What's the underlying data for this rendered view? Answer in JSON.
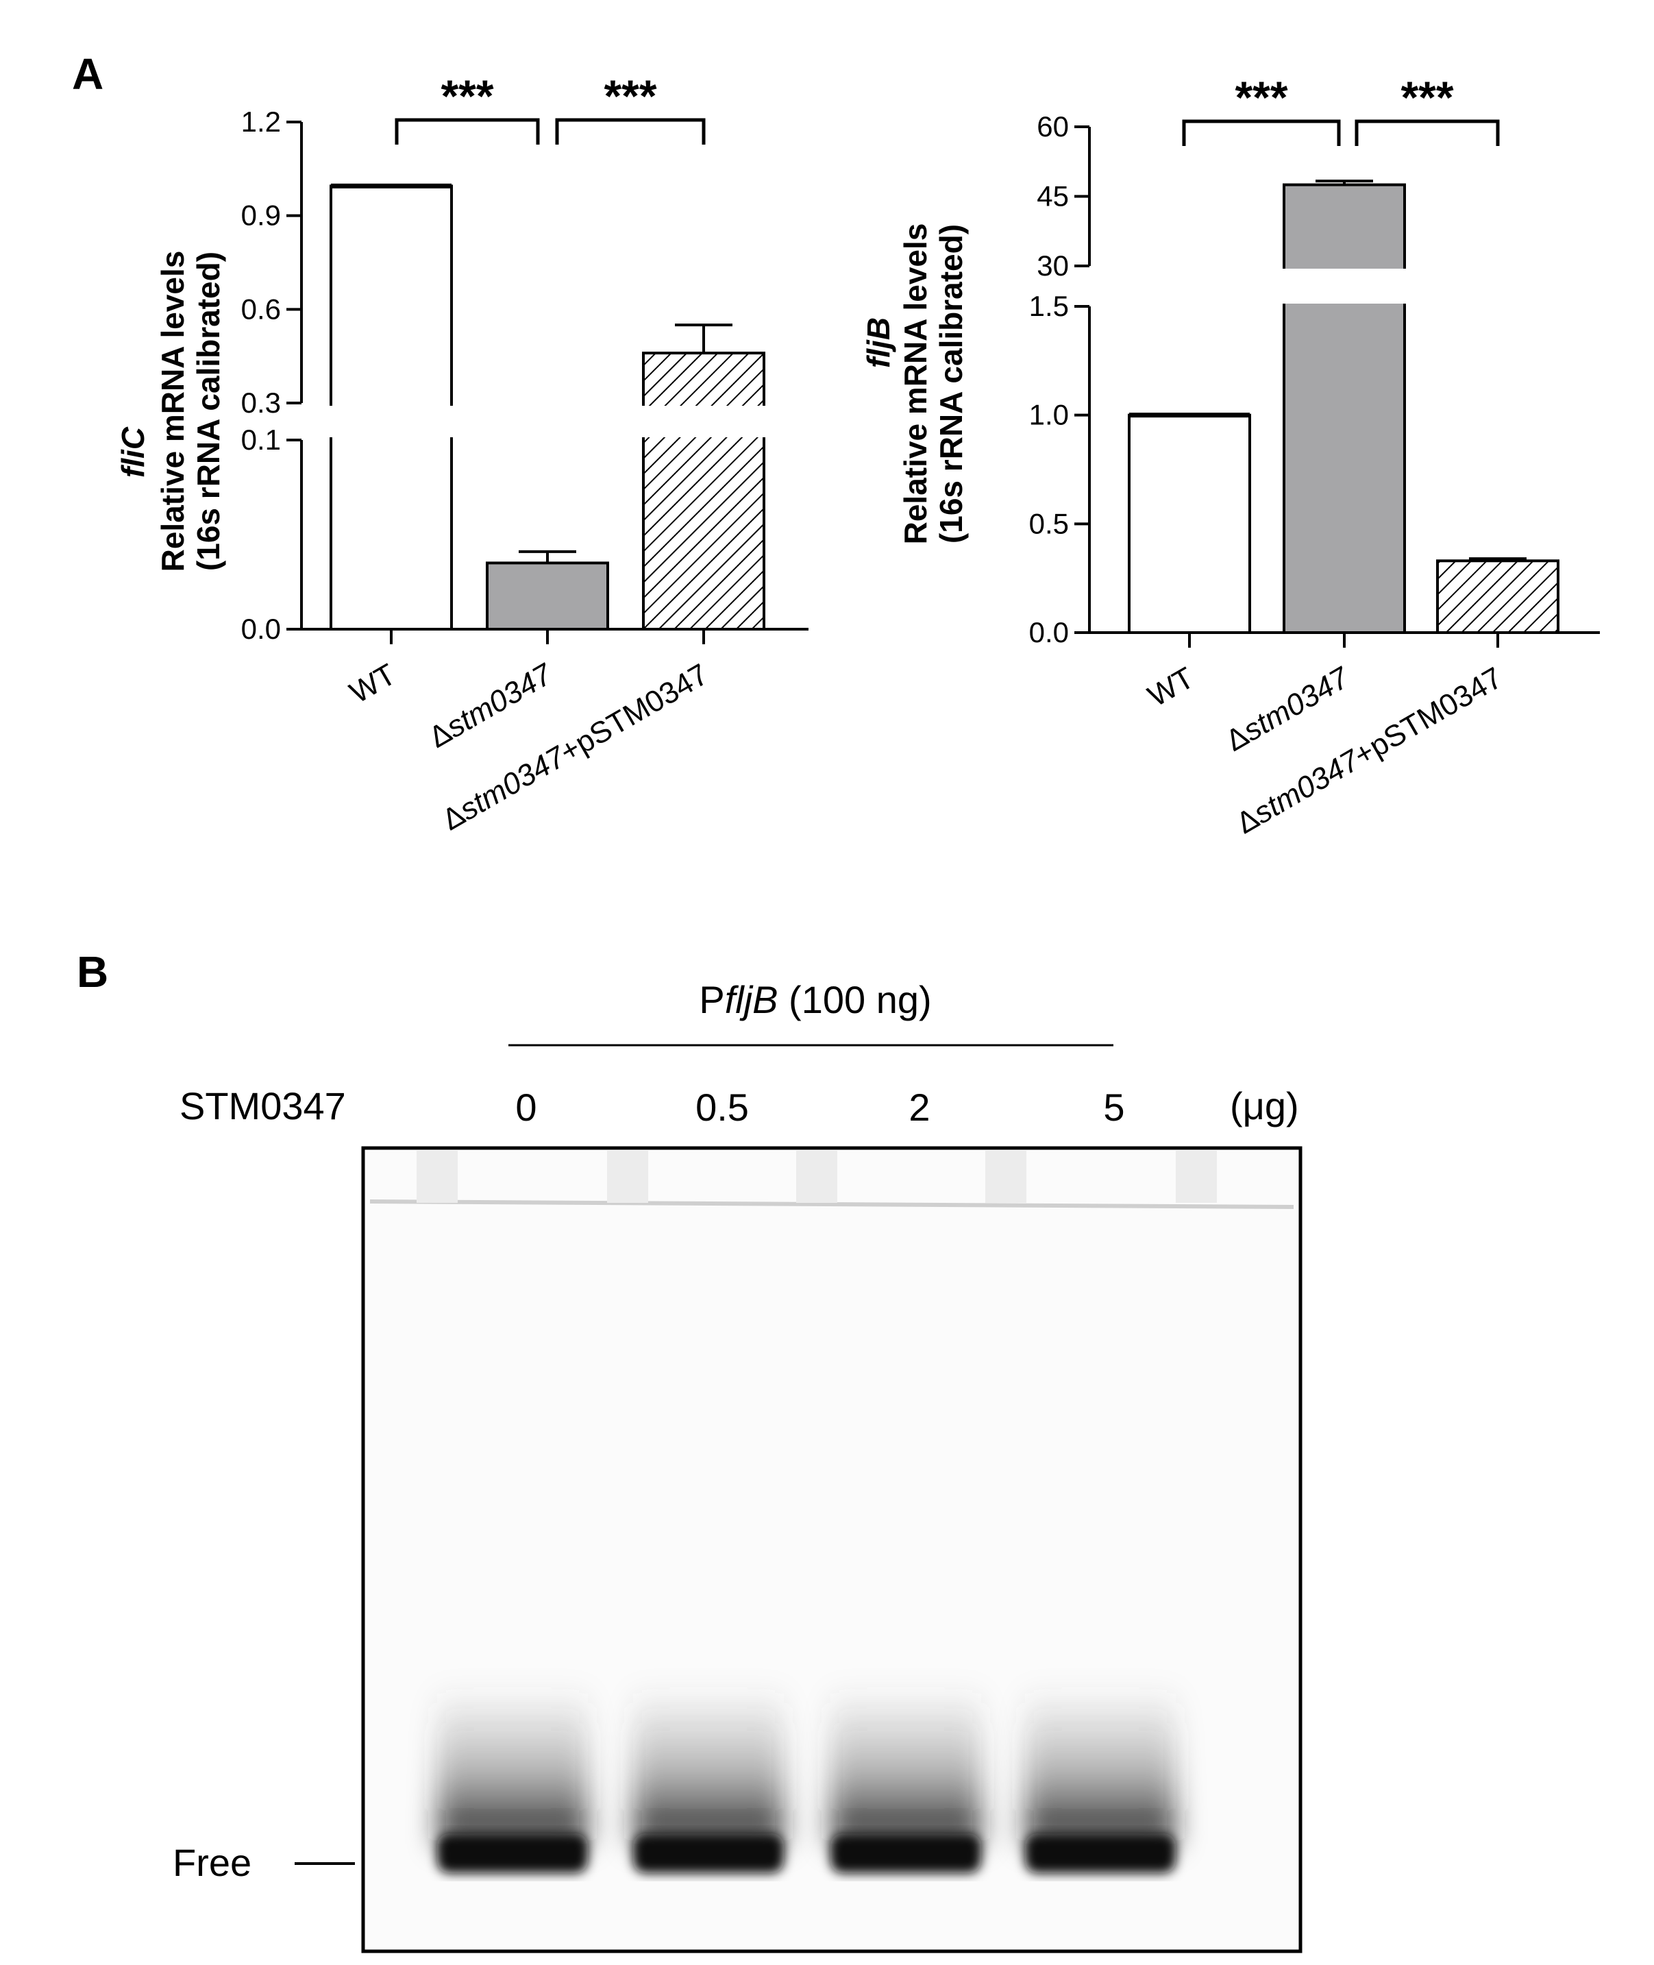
{
  "panel_a_label": "A",
  "panel_b_label": "B",
  "chart_data": [
    {
      "type": "bar",
      "panel": "A",
      "gene": "fliC",
      "ylabel_line1": "Relative mRNA levels",
      "ylabel_line2": "(16s rRNA calibrated)",
      "categories": [
        {
          "prefix": "",
          "italic": "",
          "suffix": "WT"
        },
        {
          "prefix": "Δ",
          "italic": "stm0347",
          "suffix": ""
        },
        {
          "prefix": "Δ",
          "italic": "stm0347",
          "suffix": "+pSTM0347"
        }
      ],
      "values": [
        0.995,
        0.035,
        0.46
      ],
      "errors": [
        0.003,
        0.006,
        0.09
      ],
      "fills": [
        "white",
        "#a6a6a8",
        "hatch"
      ],
      "axis_break": {
        "lower": [
          0.0,
          0.1
        ],
        "upper": [
          0.3,
          1.2
        ]
      },
      "yticks_lower": [
        0.0,
        0.1
      ],
      "yticks_upper": [
        0.3,
        0.6,
        0.9,
        1.2
      ],
      "ytick_labels_lower": [
        "0.0",
        "0.1"
      ],
      "ytick_labels_upper": [
        "0.3",
        "0.6",
        "0.9",
        "1.2"
      ],
      "significance": [
        {
          "from": 0,
          "to": 1,
          "label": "***"
        },
        {
          "from": 1,
          "to": 2,
          "label": "***"
        }
      ]
    },
    {
      "type": "bar",
      "panel": "A",
      "gene": "fljB",
      "ylabel_line1": "Relative mRNA levels",
      "ylabel_line2": "(16s rRNA calibrated)",
      "categories": [
        {
          "prefix": "",
          "italic": "",
          "suffix": "WT"
        },
        {
          "prefix": "Δ",
          "italic": "stm0347",
          "suffix": ""
        },
        {
          "prefix": "Δ",
          "italic": "stm0347",
          "suffix": "+pSTM0347"
        }
      ],
      "values": [
        1.0,
        47.5,
        0.33
      ],
      "errors": [
        0.005,
        0.8,
        0.01
      ],
      "fills": [
        "white",
        "#a6a6a8",
        "hatch"
      ],
      "axis_break": {
        "lower": [
          0.0,
          1.5
        ],
        "upper": [
          30,
          60
        ]
      },
      "yticks_lower": [
        0.0,
        0.5,
        1.0,
        1.5
      ],
      "yticks_upper": [
        30,
        45,
        60
      ],
      "ytick_labels_lower": [
        "0.0",
        "0.5",
        "1.0",
        "1.5"
      ],
      "ytick_labels_upper": [
        "30",
        "45",
        "60"
      ],
      "significance": [
        {
          "from": 0,
          "to": 1,
          "label": "***"
        },
        {
          "from": 1,
          "to": 2,
          "label": "***"
        }
      ]
    }
  ],
  "gel": {
    "probe_prefix": "P",
    "probe_italic": "fljB",
    "probe_suffix": " (100 ng)",
    "protein_label": "STM0347",
    "amounts": [
      "0",
      "0.5",
      "2",
      "5"
    ],
    "unit": "(μg)",
    "free_label": "Free"
  }
}
